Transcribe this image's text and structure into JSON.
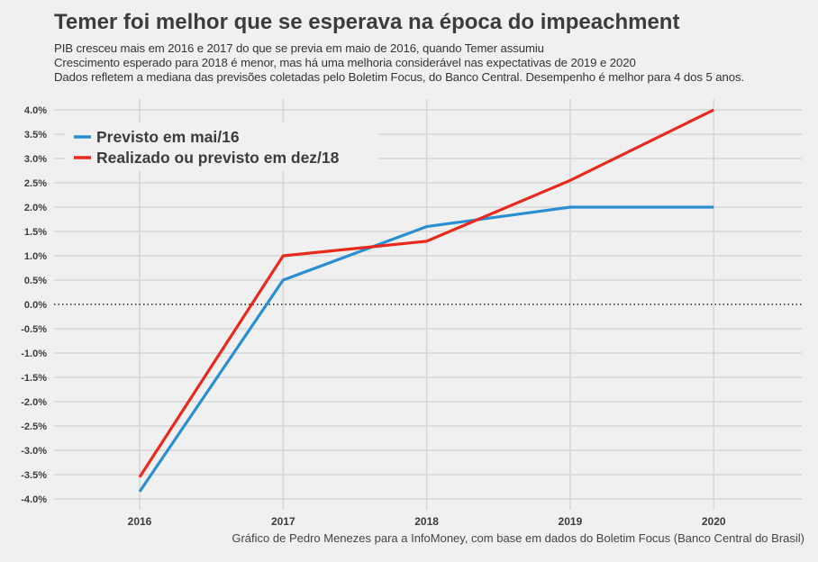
{
  "chart_data": {
    "type": "line",
    "title": "Temer foi melhor que se esperava na época do impeachment",
    "subtitle": [
      "PIB cresceu mais em 2016 e 2017 do que se previa em maio de 2016, quando Temer assumiu",
      "Crescimento esperado para 2018 é menor, mas há uma melhoria considerável nas expectativas de 2019 e 2020",
      "Dados refletem a mediana das previsões coletadas pelo Boletim Focus, do Banco Central. Desempenho é melhor para 4 dos 5 anos."
    ],
    "caption": "Gráfico de Pedro Menezes para a InfoMoney, com base em dados do Boletim Focus (Banco Central do Brasil)",
    "x": [
      "2016",
      "2017",
      "2018",
      "2019",
      "2020"
    ],
    "ylim": [
      -4.0,
      4.0
    ],
    "yticks": [
      "4.0%",
      "3.5%",
      "3.0%",
      "2.5%",
      "2.0%",
      "1.5%",
      "1.0%",
      "0.5%",
      "0.0%",
      "-0.5%",
      "-1.0%",
      "-1.5%",
      "-2.0%",
      "-2.5%",
      "-3.0%",
      "-3.5%",
      "-4.0%"
    ],
    "grid": true,
    "zero_line": "dotted",
    "legend_placement": "top-left",
    "series": [
      {
        "name": "Previsto em mai/16",
        "color": "#2a8fd2",
        "values": [
          -3.85,
          0.5,
          1.6,
          2.0,
          2.0
        ]
      },
      {
        "name": "Realizado ou previsto em dez/18",
        "color": "#e8291c",
        "values": [
          -3.55,
          1.0,
          1.3,
          2.55,
          4.0
        ]
      }
    ]
  }
}
